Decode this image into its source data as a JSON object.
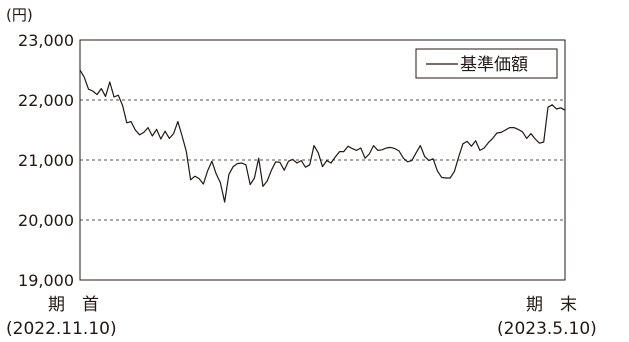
{
  "chart_data": {
    "type": "line",
    "unit_label": "(円)",
    "ylim": [
      19000,
      23000
    ],
    "yticks": [
      {
        "value": 19000,
        "label": "19,000"
      },
      {
        "value": 20000,
        "label": "20,000"
      },
      {
        "value": 21000,
        "label": "21,000"
      },
      {
        "value": 22000,
        "label": "22,000"
      },
      {
        "value": 23000,
        "label": "23,000"
      }
    ],
    "dashed_grid": [
      20000,
      21000,
      22000
    ],
    "x_start": {
      "label": "期　首",
      "date": "(2022.11.10)"
    },
    "x_end": {
      "label": "期　末",
      "date": "(2023.5.10)"
    },
    "legend": "基準価額",
    "legend_position": "top-right",
    "series": [
      {
        "name": "基準価額",
        "color": "#231815",
        "values": [
          22500,
          22380,
          22180,
          22150,
          22090,
          22190,
          22060,
          22300,
          22050,
          22080,
          21910,
          21620,
          21640,
          21500,
          21420,
          21460,
          21540,
          21400,
          21510,
          21350,
          21480,
          21360,
          21440,
          21640,
          21400,
          21140,
          20670,
          20730,
          20690,
          20600,
          20820,
          20980,
          20770,
          20620,
          20300,
          20760,
          20890,
          20940,
          20950,
          20920,
          20590,
          20700,
          21030,
          20560,
          20650,
          20830,
          20970,
          20960,
          20830,
          20980,
          21010,
          20950,
          20990,
          20880,
          20920,
          21240,
          21120,
          20890,
          20990,
          20950,
          21050,
          21140,
          21140,
          21230,
          21190,
          21160,
          21200,
          21030,
          21100,
          21240,
          21160,
          21170,
          21200,
          21210,
          21190,
          21150,
          21030,
          20970,
          20990,
          21120,
          21240,
          21060,
          20990,
          21020,
          20820,
          20710,
          20700,
          20700,
          20810,
          21050,
          21270,
          21310,
          21230,
          21320,
          21160,
          21200,
          21290,
          21360,
          21450,
          21460,
          21500,
          21540,
          21540,
          21510,
          21470,
          21360,
          21440,
          21350,
          21280,
          21300,
          21880,
          21920,
          21850,
          21870,
          21830
        ]
      }
    ]
  }
}
